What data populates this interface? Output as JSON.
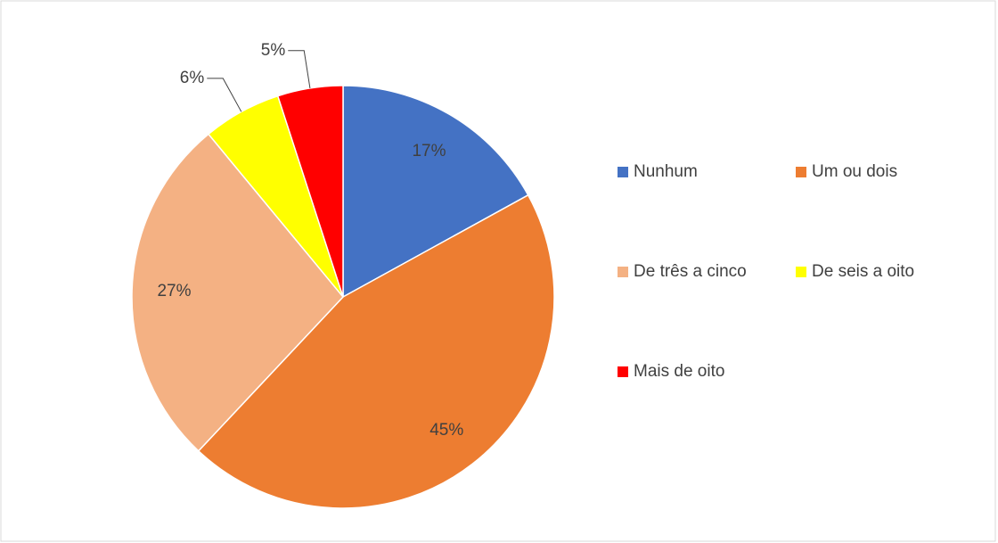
{
  "chart_data": {
    "type": "pie",
    "categories": [
      "Nunhum",
      "Um ou dois",
      "De três a cinco",
      "De seis a oito",
      "Mais de oito"
    ],
    "values": [
      17,
      45,
      27,
      6,
      5
    ],
    "value_labels": [
      "17%",
      "45%",
      "27%",
      "6%",
      "5%"
    ],
    "colors": [
      "#4472c4",
      "#ed7d31",
      "#f4b183",
      "#ffff00",
      "#ff0000"
    ],
    "legend": "right"
  }
}
